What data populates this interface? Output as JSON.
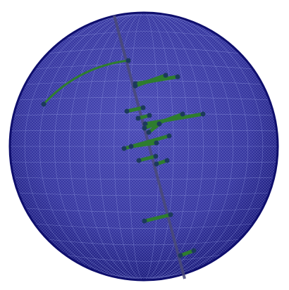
{
  "scene": {
    "object": "sphere-mesh",
    "colors": {
      "background": "#ffffff",
      "sphere_fill": "#34349c",
      "sphere_edge": "#101070",
      "mesh_line": "#9ea8e8",
      "axis_line": "#4d4d7a",
      "segment": "#2e7d2e",
      "node": "#1c3a5c"
    }
  }
}
